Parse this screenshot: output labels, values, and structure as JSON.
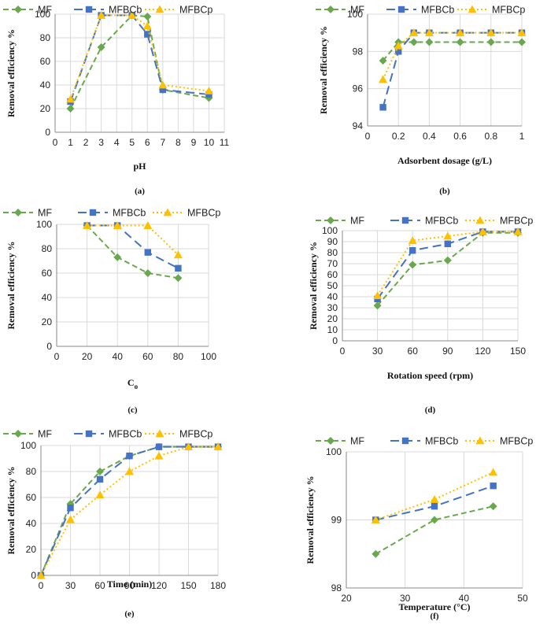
{
  "styles": {
    "MF": {
      "color": "#6AA84F",
      "dash": "7,4",
      "marker": "diamond"
    },
    "MFBCb": {
      "color": "#4472C4",
      "dash": "11,6",
      "marker": "square"
    },
    "MFBCp": {
      "color": "#FFC000",
      "dash": "2,3",
      "marker": "triangle"
    },
    "grid": "#d9d9d9",
    "axis": "#888888"
  },
  "chart_data": [
    {
      "id": "a",
      "type": "line",
      "caption": "(a)",
      "xlabel": "pH",
      "ylabel": "Removal efficiency %",
      "xlim": [
        0,
        11
      ],
      "ylim": [
        0,
        100
      ],
      "xticks": [
        0,
        1,
        2,
        3,
        4,
        5,
        6,
        7,
        8,
        9,
        10,
        11
      ],
      "yticks": [
        0,
        20,
        40,
        60,
        80,
        100
      ],
      "legend": "top",
      "series": [
        {
          "name": "MF",
          "x": [
            1,
            3,
            5,
            6,
            7,
            10
          ],
          "y": [
            20,
            72,
            99,
            98,
            36,
            29
          ]
        },
        {
          "name": "MFBCb",
          "x": [
            1,
            3,
            5,
            6,
            7,
            10
          ],
          "y": [
            26,
            99,
            99,
            83,
            36,
            32
          ]
        },
        {
          "name": "MFBCp",
          "x": [
            1,
            3,
            5,
            6,
            7,
            10
          ],
          "y": [
            28,
            99,
            99,
            90,
            40,
            35
          ]
        }
      ]
    },
    {
      "id": "b",
      "type": "line",
      "caption": "(b)",
      "xlabel": "Adsorbent dosage (g/L)",
      "ylabel": "Removal efficiency %",
      "xlim": [
        0,
        1
      ],
      "ylim": [
        94,
        100
      ],
      "xticks": [
        0,
        0.2,
        0.4,
        0.6,
        0.8,
        1
      ],
      "yticks": [
        94,
        96,
        98,
        100
      ],
      "legend": "top",
      "series": [
        {
          "name": "MF",
          "x": [
            0.1,
            0.2,
            0.3,
            0.4,
            0.6,
            0.8,
            1
          ],
          "y": [
            97.5,
            98.5,
            98.5,
            98.5,
            98.5,
            98.5,
            98.5
          ]
        },
        {
          "name": "MFBCb",
          "x": [
            0.1,
            0.2,
            0.3,
            0.4,
            0.6,
            0.8,
            1
          ],
          "y": [
            95,
            98,
            99,
            99,
            99,
            99,
            99
          ]
        },
        {
          "name": "MFBCp",
          "x": [
            0.1,
            0.2,
            0.3,
            0.4,
            0.6,
            0.8,
            1
          ],
          "y": [
            96.5,
            98.3,
            99,
            99,
            99,
            99,
            99
          ]
        }
      ]
    },
    {
      "id": "c",
      "type": "line",
      "caption": "(c)",
      "xlabel": "C",
      "xlabel_sub": "o",
      "ylabel": "Removal efficiency %",
      "xlim": [
        0,
        100
      ],
      "ylim": [
        0,
        100
      ],
      "xticks": [
        0,
        20,
        40,
        60,
        80,
        100
      ],
      "yticks": [
        0,
        20,
        40,
        60,
        80,
        100
      ],
      "legend": "top",
      "series": [
        {
          "name": "MF",
          "x": [
            20,
            40,
            60,
            80
          ],
          "y": [
            99,
            73,
            60,
            56
          ]
        },
        {
          "name": "MFBCb",
          "x": [
            20,
            40,
            60,
            80
          ],
          "y": [
            99,
            99,
            77,
            64
          ]
        },
        {
          "name": "MFBCp",
          "x": [
            20,
            40,
            60,
            80
          ],
          "y": [
            99,
            99,
            99,
            75
          ]
        }
      ]
    },
    {
      "id": "d",
      "type": "line",
      "caption": "(d)",
      "xlabel": "Rotation speed (rpm)",
      "ylabel": "Removal efficiency %",
      "xlim": [
        0,
        150
      ],
      "ylim": [
        0,
        100
      ],
      "xticks": [
        0,
        30,
        60,
        90,
        120,
        150
      ],
      "yticks": [
        0,
        10,
        20,
        30,
        40,
        50,
        60,
        70,
        80,
        90,
        100
      ],
      "legend": "top",
      "series": [
        {
          "name": "MF",
          "x": [
            30,
            60,
            90,
            120,
            150
          ],
          "y": [
            32,
            69,
            73,
            98,
            98
          ]
        },
        {
          "name": "MFBCb",
          "x": [
            30,
            60,
            90,
            120,
            150
          ],
          "y": [
            38,
            82,
            88,
            99,
            99
          ]
        },
        {
          "name": "MFBCp",
          "x": [
            30,
            60,
            90,
            120,
            150
          ],
          "y": [
            41,
            91,
            95,
            99,
            99
          ]
        }
      ]
    },
    {
      "id": "e",
      "type": "line",
      "caption": "(e)",
      "xlabel": "Time (min)",
      "ylabel": "Removal efficiency %",
      "xlim": [
        0,
        180
      ],
      "ylim": [
        0,
        100
      ],
      "xticks": [
        0,
        30,
        60,
        90,
        120,
        150,
        180
      ],
      "yticks": [
        0,
        20,
        40,
        60,
        80,
        100
      ],
      "legend": "top",
      "series": [
        {
          "name": "MF",
          "x": [
            0,
            30,
            60,
            90,
            120,
            150,
            180
          ],
          "y": [
            0,
            55,
            80,
            92,
            99,
            99,
            99
          ]
        },
        {
          "name": "MFBCb",
          "x": [
            0,
            30,
            60,
            90,
            120,
            150,
            180
          ],
          "y": [
            0,
            52,
            74,
            92,
            99,
            99,
            99
          ]
        },
        {
          "name": "MFBCp",
          "x": [
            0,
            30,
            60,
            90,
            120,
            150,
            180
          ],
          "y": [
            0,
            43,
            62,
            80,
            92,
            99,
            99
          ]
        }
      ]
    },
    {
      "id": "f",
      "type": "line",
      "caption": "(f)",
      "xlabel": "Temperature (°C)",
      "ylabel": "Removal efficiency %",
      "xlim": [
        20,
        50
      ],
      "ylim": [
        98,
        100
      ],
      "xticks": [
        20,
        30,
        40,
        50
      ],
      "yticks": [
        98,
        99,
        100
      ],
      "legend": "top",
      "series": [
        {
          "name": "MF",
          "x": [
            25,
            35,
            45
          ],
          "y": [
            98.5,
            99,
            99.2
          ]
        },
        {
          "name": "MFBCb",
          "x": [
            25,
            35,
            45
          ],
          "y": [
            99,
            99.2,
            99.5
          ]
        },
        {
          "name": "MFBCp",
          "x": [
            25,
            35,
            45
          ],
          "y": [
            99,
            99.3,
            99.7
          ]
        }
      ]
    }
  ]
}
